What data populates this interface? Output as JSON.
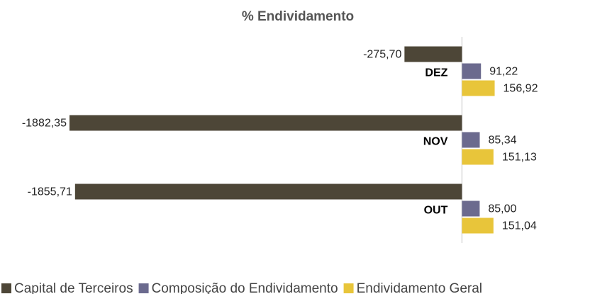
{
  "chart_data": {
    "type": "hbar",
    "title": "% Endividamento",
    "categories": [
      "DEZ",
      "NOV",
      "OUT"
    ],
    "series": [
      {
        "name": "Capital de Terceiros",
        "color": "#4d4637",
        "values": [
          -275.7,
          -1882.35,
          -1855.71
        ],
        "value_labels": [
          "-275,70",
          "-1882,35",
          "-1855,71"
        ]
      },
      {
        "name": "Composição do Endividamento",
        "color": "#6b6a8e",
        "values": [
          91.22,
          85.34,
          85.0
        ],
        "value_labels": [
          "91,22",
          "85,34",
          "85,00"
        ]
      },
      {
        "name": "Endividamento Geral",
        "color": "#e8c53a",
        "values": [
          156.92,
          151.13,
          151.04
        ],
        "value_labels": [
          "156,92",
          "151,13",
          "151,04"
        ]
      }
    ],
    "xlim": [
      -2000,
      200
    ],
    "legend": "bottom"
  }
}
